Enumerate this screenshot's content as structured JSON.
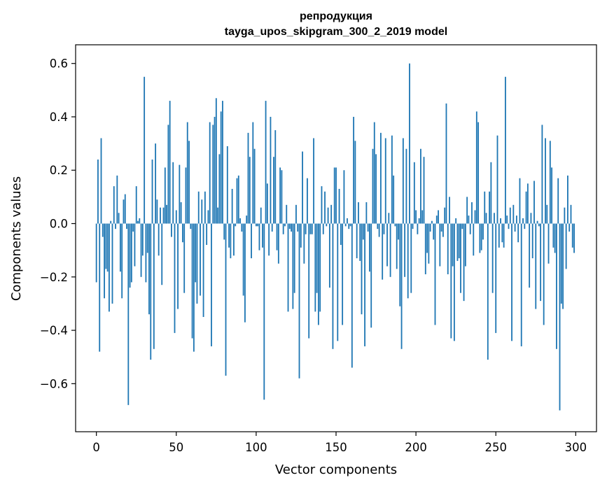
{
  "chart_data": {
    "type": "bar",
    "title": "репродукция",
    "subtitle": "tayga_upos_skipgram_300_2_2019 model",
    "xlabel": "Vector components",
    "ylabel": "Components values",
    "xlim": [
      -13,
      313
    ],
    "ylim": [
      -0.78,
      0.67
    ],
    "x_ticks": [
      {
        "value": 0,
        "label": "0"
      },
      {
        "value": 50,
        "label": "50"
      },
      {
        "value": 100,
        "label": "100"
      },
      {
        "value": 150,
        "label": "150"
      },
      {
        "value": 200,
        "label": "200"
      },
      {
        "value": 250,
        "label": "250"
      },
      {
        "value": 300,
        "label": "300"
      }
    ],
    "y_ticks": [
      {
        "value": 0.6,
        "label": "0.6"
      },
      {
        "value": 0.4,
        "label": "0.4"
      },
      {
        "value": 0.2,
        "label": "0.2"
      },
      {
        "value": 0.0,
        "label": "0.0"
      },
      {
        "value": -0.2,
        "label": "−0.2"
      },
      {
        "value": -0.4,
        "label": "−0.4"
      },
      {
        "value": -0.6,
        "label": "−0.6"
      }
    ],
    "bar_color": "#1f77b4",
    "grid": false,
    "values": [
      -0.22,
      0.24,
      -0.48,
      0.32,
      -0.05,
      -0.28,
      -0.17,
      -0.18,
      -0.33,
      0.01,
      -0.3,
      0.14,
      -0.02,
      0.18,
      0.04,
      -0.18,
      -0.28,
      0.09,
      0.11,
      -0.02,
      -0.68,
      -0.24,
      -0.22,
      -0.03,
      -0.16,
      0.14,
      0.01,
      0.02,
      -0.2,
      -0.12,
      0.55,
      -0.22,
      -0.11,
      -0.34,
      -0.51,
      0.24,
      -0.47,
      0.3,
      0.09,
      -0.12,
      0.06,
      -0.23,
      0.06,
      0.21,
      0.07,
      0.37,
      0.46,
      -0.05,
      0.23,
      -0.41,
      0.05,
      -0.32,
      0.22,
      0.08,
      -0.07,
      -0.26,
      0.21,
      0.38,
      0.31,
      -0.02,
      -0.43,
      -0.48,
      -0.22,
      -0.3,
      0.12,
      -0.27,
      0.09,
      -0.35,
      0.12,
      -0.08,
      0.05,
      0.38,
      -0.46,
      0.37,
      0.4,
      0.47,
      0.06,
      0.26,
      0.42,
      0.46,
      -0.06,
      -0.57,
      0.29,
      -0.09,
      -0.13,
      0.13,
      -0.12,
      -0.01,
      0.17,
      0.18,
      0.02,
      -0.03,
      -0.27,
      -0.37,
      0.03,
      0.34,
      0.25,
      -0.13,
      0.38,
      0.28,
      -0.01,
      -0.01,
      -0.1,
      0.06,
      -0.09,
      -0.66,
      0.46,
      0.15,
      -0.12,
      0.4,
      -0.03,
      0.25,
      0.35,
      -0.1,
      -0.15,
      0.21,
      0.2,
      -0.04,
      -0.01,
      0.07,
      -0.33,
      -0.02,
      -0.03,
      -0.32,
      -0.26,
      0.07,
      -0.03,
      -0.58,
      -0.09,
      0.27,
      -0.15,
      -0.04,
      0.17,
      -0.43,
      -0.04,
      -0.04,
      0.32,
      -0.33,
      -0.26,
      -0.38,
      -0.33,
      0.14,
      -0.04,
      0.12,
      -0.01,
      0.06,
      -0.24,
      0.07,
      -0.47,
      0.21,
      0.21,
      -0.44,
      0.13,
      -0.08,
      -0.38,
      0.2,
      -0.01,
      0.02,
      -0.02,
      -0.01,
      -0.54,
      0.4,
      0.31,
      -0.13,
      0.08,
      -0.14,
      -0.34,
      -0.06,
      -0.46,
      0.08,
      -0.03,
      -0.18,
      -0.39,
      0.28,
      0.38,
      0.26,
      -0.02,
      -0.05,
      0.34,
      -0.21,
      -0.04,
      0.32,
      -0.16,
      0.04,
      -0.2,
      0.33,
      0.18,
      -0.01,
      -0.17,
      -0.06,
      -0.31,
      -0.47,
      0.32,
      -0.2,
      0.28,
      -0.28,
      0.6,
      -0.26,
      -0.02,
      0.23,
      0.05,
      -0.04,
      0.02,
      0.28,
      0.05,
      0.25,
      -0.19,
      -0.11,
      -0.15,
      -0.03,
      0.01,
      -0.06,
      -0.38,
      0.03,
      0.05,
      -0.16,
      -0.03,
      -0.05,
      0.06,
      0.45,
      -0.19,
      0.1,
      -0.43,
      -0.16,
      -0.44,
      0.02,
      -0.14,
      -0.13,
      -0.26,
      -0.02,
      -0.29,
      -0.16,
      0.1,
      0.03,
      -0.04,
      0.08,
      -0.12,
      0.05,
      0.42,
      0.38,
      -0.11,
      -0.1,
      -0.06,
      0.12,
      0.04,
      -0.51,
      0.12,
      0.23,
      -0.26,
      0.04,
      -0.41,
      0.33,
      -0.09,
      0.02,
      -0.07,
      -0.09,
      0.55,
      0.03,
      -0.02,
      0.06,
      -0.44,
      0.07,
      -0.03,
      0.03,
      -0.07,
      0.17,
      -0.46,
      0.02,
      -0.02,
      0.12,
      0.15,
      -0.24,
      0.04,
      -0.13,
      0.16,
      -0.32,
      0.01,
      -0.01,
      -0.29,
      0.37,
      -0.38,
      0.32,
      0.07,
      -0.15,
      0.31,
      0.21,
      -0.09,
      -0.11,
      -0.47,
      0.17,
      -0.7,
      -0.3,
      -0.32,
      0.06,
      -0.17,
      0.18,
      -0.03,
      0.07,
      -0.09,
      -0.11
    ]
  }
}
